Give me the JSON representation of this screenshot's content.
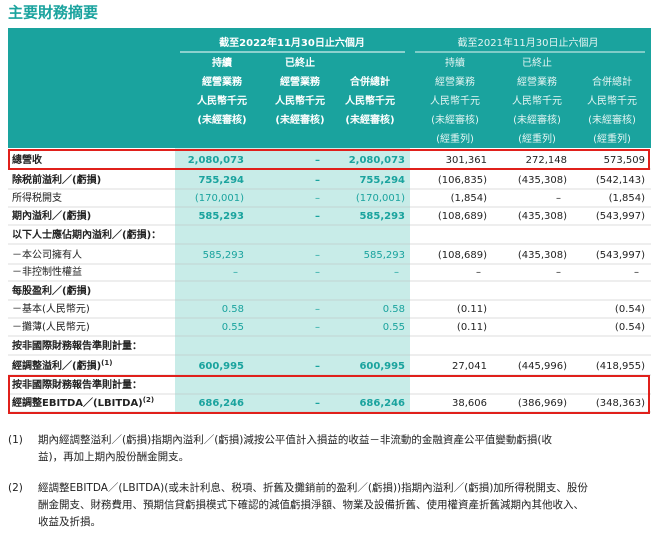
{
  "header": {
    "title": "主要財務摘要"
  },
  "table": {
    "periods": [
      "截至2022年11月30日止六個月",
      "截至2021年11月30日止六個月"
    ],
    "columns": [
      [
        "持續",
        "經營業務",
        "人民幣千元",
        "(未經審核)"
      ],
      [
        "已終止",
        "經營業務",
        "人民幣千元",
        "(未經審核)"
      ],
      [
        "合併總計",
        "人民幣千元",
        "(未經審核)"
      ],
      [
        "持續",
        "經營業務",
        "人民幣千元",
        "(未經審核)",
        "(經重列)"
      ],
      [
        "已終止",
        "經營業務",
        "人民幣千元",
        "(未經審核)",
        "(經重列)"
      ],
      [
        "合併總計",
        "人民幣千元",
        "(未經審核)",
        "(經重列)"
      ]
    ],
    "rows": [
      {
        "label": "總營收",
        "bold": true,
        "cells": [
          "2,080,073",
          "–",
          "2,080,073",
          "301,361",
          "272,148",
          "573,509"
        ]
      },
      {
        "label": "除税前溢利／(虧損)",
        "bold": true,
        "cells": [
          "755,294",
          "–",
          "755,294",
          "(106,835)",
          "(435,308)",
          "(542,143)"
        ]
      },
      {
        "label": "所得税開支",
        "bold": false,
        "cells": [
          "(170,001)",
          "–",
          "(170,001)",
          "(1,854)",
          "–",
          "(1,854)"
        ]
      },
      {
        "label": "期內溢利／(虧損)",
        "bold": true,
        "cells": [
          "585,293",
          "–",
          "585,293",
          "(108,689)",
          "(435,308)",
          "(543,997)"
        ]
      },
      {
        "label": "以下人士應佔期內溢利／(虧損)：",
        "bold": true,
        "cells": null
      },
      {
        "label": "－本公司擁有人",
        "bold": false,
        "cells": [
          "585,293",
          "–",
          "585,293",
          "(108,689)",
          "(435,308)",
          "(543,997)"
        ]
      },
      {
        "label": "－非控制性權益",
        "bold": false,
        "cells": [
          "–",
          "–",
          "–",
          "–",
          "–",
          "–"
        ]
      },
      {
        "label": "每股盈利／(虧損)",
        "bold": true,
        "cells": null
      },
      {
        "label": "－基本(人民幣元)",
        "bold": false,
        "cells": [
          "0.58",
          "–",
          "0.58",
          "(0.11)",
          null,
          "(0.54)"
        ]
      },
      {
        "label": "－攤薄(人民幣元)",
        "bold": false,
        "cells": [
          "0.55",
          "–",
          "0.55",
          "(0.11)",
          null,
          "(0.54)"
        ]
      },
      {
        "label": "按非國際財務報告準則計量：",
        "bold": true,
        "cells": null
      },
      {
        "label": "經調整溢利／(虧損)",
        "note": "(1)",
        "bold": true,
        "cells": [
          "600,995",
          "–",
          "600,995",
          "27,041",
          "(445,996)",
          "(418,955)"
        ]
      },
      {
        "label": "按非國際財務報告準則計量：",
        "bold": true,
        "cells": null
      },
      {
        "label": "經調整EBITDA／(LBITDA)",
        "note": "(2)",
        "bold": true,
        "cells": [
          "686,246",
          "–",
          "686,246",
          "38,606",
          "(386,969)",
          "(348,363)"
        ]
      }
    ]
  },
  "footnotes": [
    {
      "marker": "(1)",
      "lines": [
        "期內經調整溢利／(虧損)指期內溢利／(虧損)減按公平值計入損益的收益－非流動的金融資產公平值變動虧損(收",
        "益)，再加上期內股份酬金開支。"
      ]
    },
    {
      "marker": "(2)",
      "lines": [
        "經調整EBITDA／(LBITDA)(或未計利息、税項、折舊及攤銷前的盈利／(虧損))指期內溢利／(虧損)加所得税開支、股份",
        "酬金開支、財務費用、預期信貸虧損模式下確認的減值虧損淨額、物業及設備折舊、使用權資產折舊減期內其他收入、",
        "收益及折損。"
      ]
    }
  ]
}
